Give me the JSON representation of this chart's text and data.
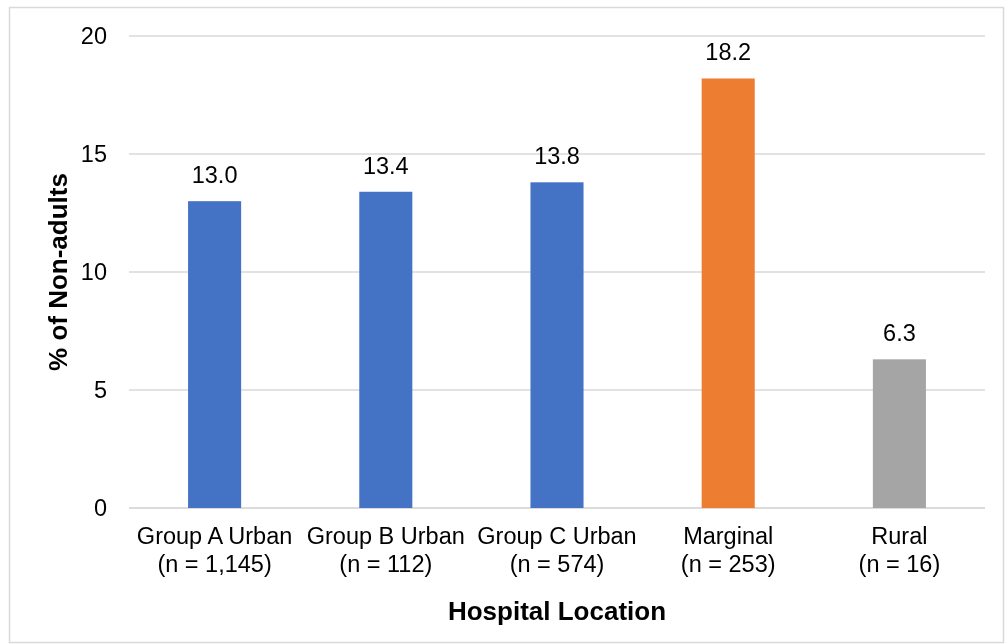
{
  "chart_data": {
    "type": "bar",
    "xlabel": "Hospital Location",
    "ylabel": "% of Non-adults",
    "categories": [
      "Group A Urban\n(n = 1,145)",
      "Group B Urban\n(n = 112)",
      "Group C Urban\n(n = 574)",
      "Marginal\n(n = 253)",
      "Rural\n(n = 16)"
    ],
    "values": [
      13.0,
      13.4,
      13.8,
      18.2,
      6.3
    ],
    "colors": [
      "#4472c4",
      "#4472c4",
      "#4472c4",
      "#ed7d31",
      "#a5a5a5"
    ],
    "value_labels": [
      "13.0",
      "13.4",
      "13.8",
      "18.2",
      "6.3"
    ],
    "ylim": [
      0,
      20
    ],
    "yticks": [
      0,
      5,
      10,
      15,
      20
    ],
    "grid": "y"
  }
}
